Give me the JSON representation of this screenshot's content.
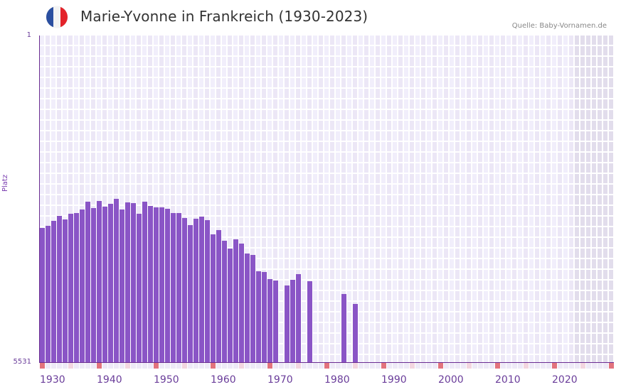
{
  "header": {
    "title": "Marie-Yvonne in Frankreich (1930-2023)",
    "source": "Quelle: Baby-Vornamen.de",
    "flag_colors": [
      "#2b4fa0",
      "#f3f3f3",
      "#e3232a"
    ]
  },
  "axes": {
    "y_top_label": "1",
    "y_bottom_label": "5531",
    "y_title": "Platz",
    "x_labels": [
      "1930",
      "1940",
      "1950",
      "1960",
      "1970",
      "1980",
      "1990",
      "2000",
      "2010",
      "2020"
    ]
  },
  "colors": {
    "bar": "#8a55c6",
    "axis": "#6a2c91",
    "grid_a": "#f1eefb",
    "grid_b": "#ece7f6",
    "future_shade": "#e2ddec",
    "decade_marker": "#e2737d",
    "half_decade_marker": "#f3d6e0",
    "year_marker": "#eeeaf7"
  },
  "chart_data": {
    "type": "bar",
    "title": "Marie-Yvonne in Frankreich (1930-2023)",
    "xlabel": "",
    "ylabel": "Platz",
    "ylim": [
      5531,
      1
    ],
    "y_inverted": true,
    "x": [
      1930,
      1931,
      1932,
      1933,
      1934,
      1935,
      1936,
      1937,
      1938,
      1939,
      1940,
      1941,
      1942,
      1943,
      1944,
      1945,
      1946,
      1947,
      1948,
      1949,
      1950,
      1951,
      1952,
      1953,
      1954,
      1955,
      1956,
      1957,
      1958,
      1959,
      1960,
      1961,
      1962,
      1963,
      1964,
      1965,
      1966,
      1967,
      1968,
      1969,
      1970,
      1971,
      1972,
      1973,
      1974,
      1975,
      1976,
      1977,
      1978,
      1979,
      1980,
      1981,
      1982,
      1983,
      1984,
      1985
    ],
    "values": [
      3259,
      3223,
      3139,
      3055,
      3115,
      3019,
      3007,
      2946,
      2814,
      2922,
      2802,
      2898,
      2850,
      2765,
      2946,
      2826,
      2838,
      3019,
      2814,
      2886,
      2910,
      2910,
      2934,
      3007,
      3007,
      3091,
      3211,
      3103,
      3067,
      3127,
      3368,
      3296,
      3476,
      3609,
      3452,
      3524,
      3693,
      3717,
      3994,
      4006,
      4126,
      4150,
      null,
      4235,
      4138,
      4042,
      null,
      4162,
      null,
      null,
      null,
      null,
      null,
      4380,
      null,
      4548
    ],
    "grid": true,
    "legend": null,
    "shaded_future_years": [
      2024,
      2030
    ]
  }
}
